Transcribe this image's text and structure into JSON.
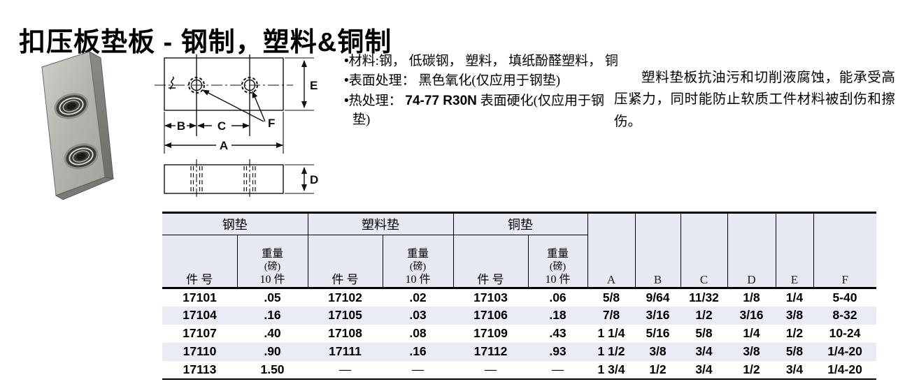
{
  "page": {
    "title": "扣压板垫板 - 钢制，塑料&铜制"
  },
  "specs": {
    "bullets": [
      {
        "pre": "材料:钢， 低碳钢， 塑料， 填纸酚醛塑料， 铜",
        "bold": "",
        "post": ""
      },
      {
        "pre": "表面处理： 黑色氧化(仅应用于钢垫)",
        "bold": "",
        "post": ""
      },
      {
        "pre": "热处理： ",
        "bold": "74-77 R30N",
        "post": " 表面硬化(仅应用于钢垫)"
      }
    ]
  },
  "description": {
    "text": "塑料垫板抗油污和切削液腐蚀，能承受高压紧力，同时能防止软质工件材料被刮伤和擦伤。"
  },
  "drawing": {
    "labels": {
      "A": "A",
      "B": "B",
      "C": "C",
      "D": "D",
      "E": "E",
      "F": "F"
    }
  },
  "table": {
    "groups": [
      {
        "label": "钢垫"
      },
      {
        "label": "塑料垫"
      },
      {
        "label": "铜垫"
      }
    ],
    "sub_headers": {
      "part": "件 号",
      "weight_lines": [
        "重量",
        "(磅)",
        "10 件"
      ]
    },
    "dim_headers": [
      "A",
      "B",
      "C",
      "D",
      "E",
      "F"
    ],
    "rows": [
      [
        "17101",
        ".05",
        "17102",
        ".02",
        "17103",
        ".06",
        "5/8",
        "9/64",
        "11/32",
        "1/8",
        "1/4",
        "5-40"
      ],
      [
        "17104",
        ".16",
        "17105",
        ".03",
        "17106",
        ".18",
        "7/8",
        "3/16",
        "1/2",
        "3/16",
        "3/8",
        "8-32"
      ],
      [
        "17107",
        ".40",
        "17108",
        ".08",
        "17109",
        ".43",
        "1 1/4",
        "5/16",
        "5/8",
        "1/4",
        "1/2",
        "10-24"
      ],
      [
        "17110",
        ".90",
        "17111",
        ".16",
        "17112",
        ".93",
        "1 1/2",
        "3/8",
        "3/4",
        "3/8",
        "5/8",
        "1/4-20"
      ],
      [
        "17113",
        "1.50",
        "—",
        "—",
        "—",
        "—",
        "1 3/4",
        "1/2",
        "3/4",
        "1/2",
        "3/4",
        "1/4-20"
      ]
    ]
  },
  "colors": {
    "header_bg": "#e6e8f2",
    "row_alt_bg": "#e9ecf5",
    "border": "#000000"
  }
}
